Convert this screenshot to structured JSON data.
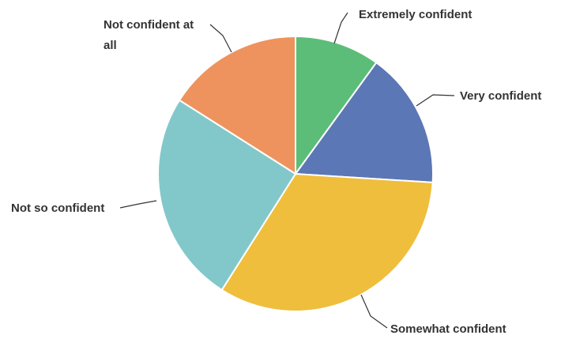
{
  "chart_data": {
    "type": "pie",
    "title": "",
    "start_angle_deg": 0,
    "direction": "clockwise",
    "slices": [
      {
        "label": "Extremely confident",
        "value": 10,
        "color": "#5cbd79"
      },
      {
        "label": "Very confident",
        "value": 16,
        "color": "#5b77b5"
      },
      {
        "label": "Somewhat confident",
        "value": 33,
        "color": "#f0be3d"
      },
      {
        "label": "Not so confident",
        "value": 25,
        "color": "#82c8cb"
      },
      {
        "label": "Not confident at all",
        "value": 16,
        "color": "#ee935e"
      }
    ]
  }
}
